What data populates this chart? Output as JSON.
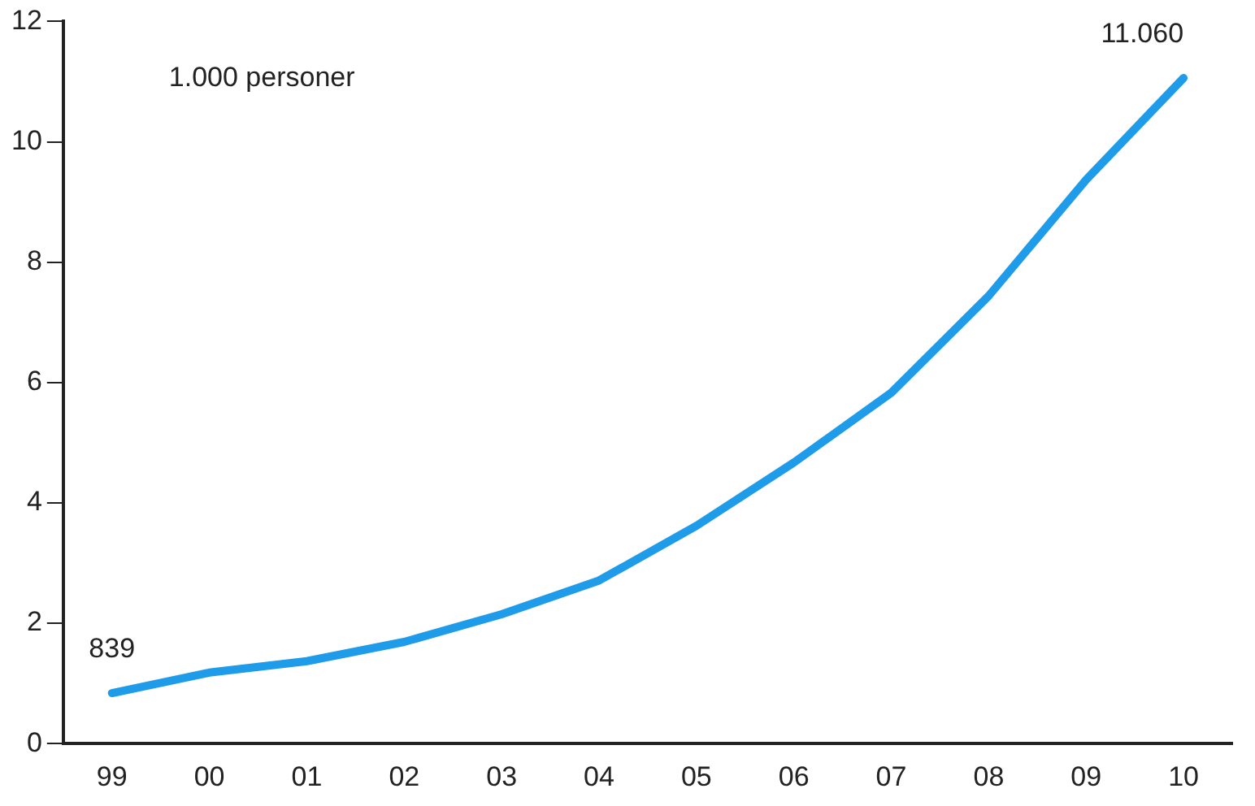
{
  "chart_data": {
    "type": "line",
    "annotations": [
      "1.000 personer",
      {
        "text": "839",
        "x": "99",
        "y": 0.839
      },
      {
        "text": "11.060",
        "x": "10",
        "y": 11.06
      }
    ],
    "categories": [
      "99",
      "00",
      "01",
      "02",
      "03",
      "04",
      "05",
      "06",
      "07",
      "08",
      "09",
      "10"
    ],
    "values": [
      0.839,
      1.18,
      1.37,
      1.69,
      2.15,
      2.71,
      3.62,
      4.67,
      5.83,
      7.44,
      9.37,
      11.06
    ],
    "color": "#1e9be9",
    "ylim": [
      0,
      12
    ],
    "yticks": [
      0,
      2,
      4,
      6,
      8,
      10,
      12
    ],
    "grid": false,
    "legend": false,
    "marker": "none"
  }
}
